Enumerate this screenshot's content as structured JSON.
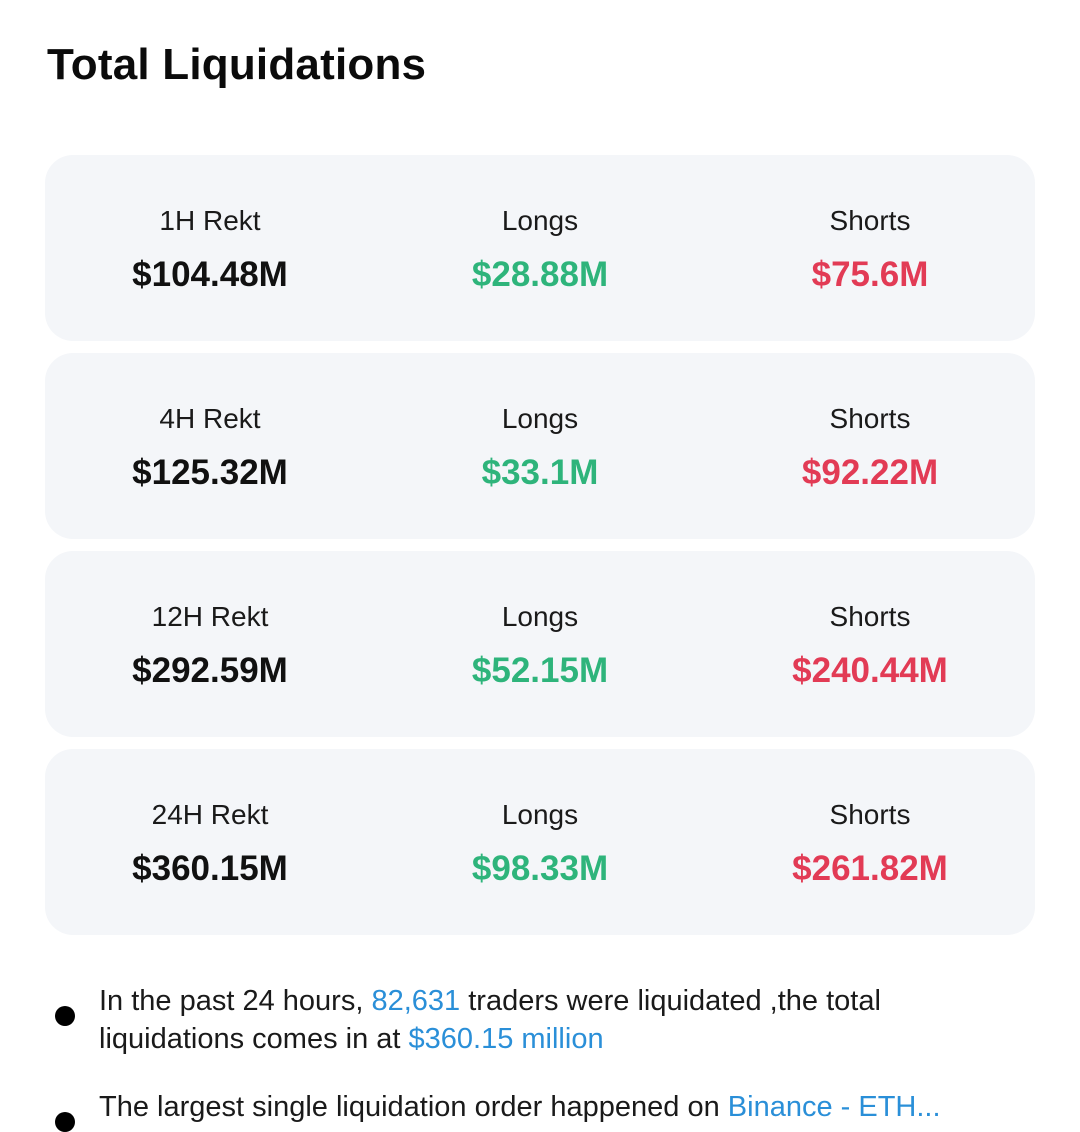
{
  "title": "Total Liquidations",
  "colors": {
    "longs": "#2eb47b",
    "shorts": "#e23b55",
    "link": "#2a8fd8",
    "card_bg": "#f4f6f9"
  },
  "cards": [
    {
      "period_label": "1H Rekt",
      "total": "$104.48M",
      "longs_label": "Longs",
      "longs": "$28.88M",
      "shorts_label": "Shorts",
      "shorts": "$75.6M"
    },
    {
      "period_label": "4H Rekt",
      "total": "$125.32M",
      "longs_label": "Longs",
      "longs": "$33.1M",
      "shorts_label": "Shorts",
      "shorts": "$92.22M"
    },
    {
      "period_label": "12H Rekt",
      "total": "$292.59M",
      "longs_label": "Longs",
      "longs": "$52.15M",
      "shorts_label": "Shorts",
      "shorts": "$240.44M"
    },
    {
      "period_label": "24H Rekt",
      "total": "$360.15M",
      "longs_label": "Longs",
      "longs": "$98.33M",
      "shorts_label": "Shorts",
      "shorts": "$261.82M"
    }
  ],
  "summary": {
    "bullet1": {
      "prefix": "In the past 24 hours, ",
      "trader_count": "82,631",
      "middle": " traders were liquidated ,the total liquidations comes in at ",
      "amount": "$360.15 million"
    },
    "bullet2": {
      "prefix": "The largest single liquidation order happened on ",
      "link": "Binance - ETH..."
    }
  }
}
